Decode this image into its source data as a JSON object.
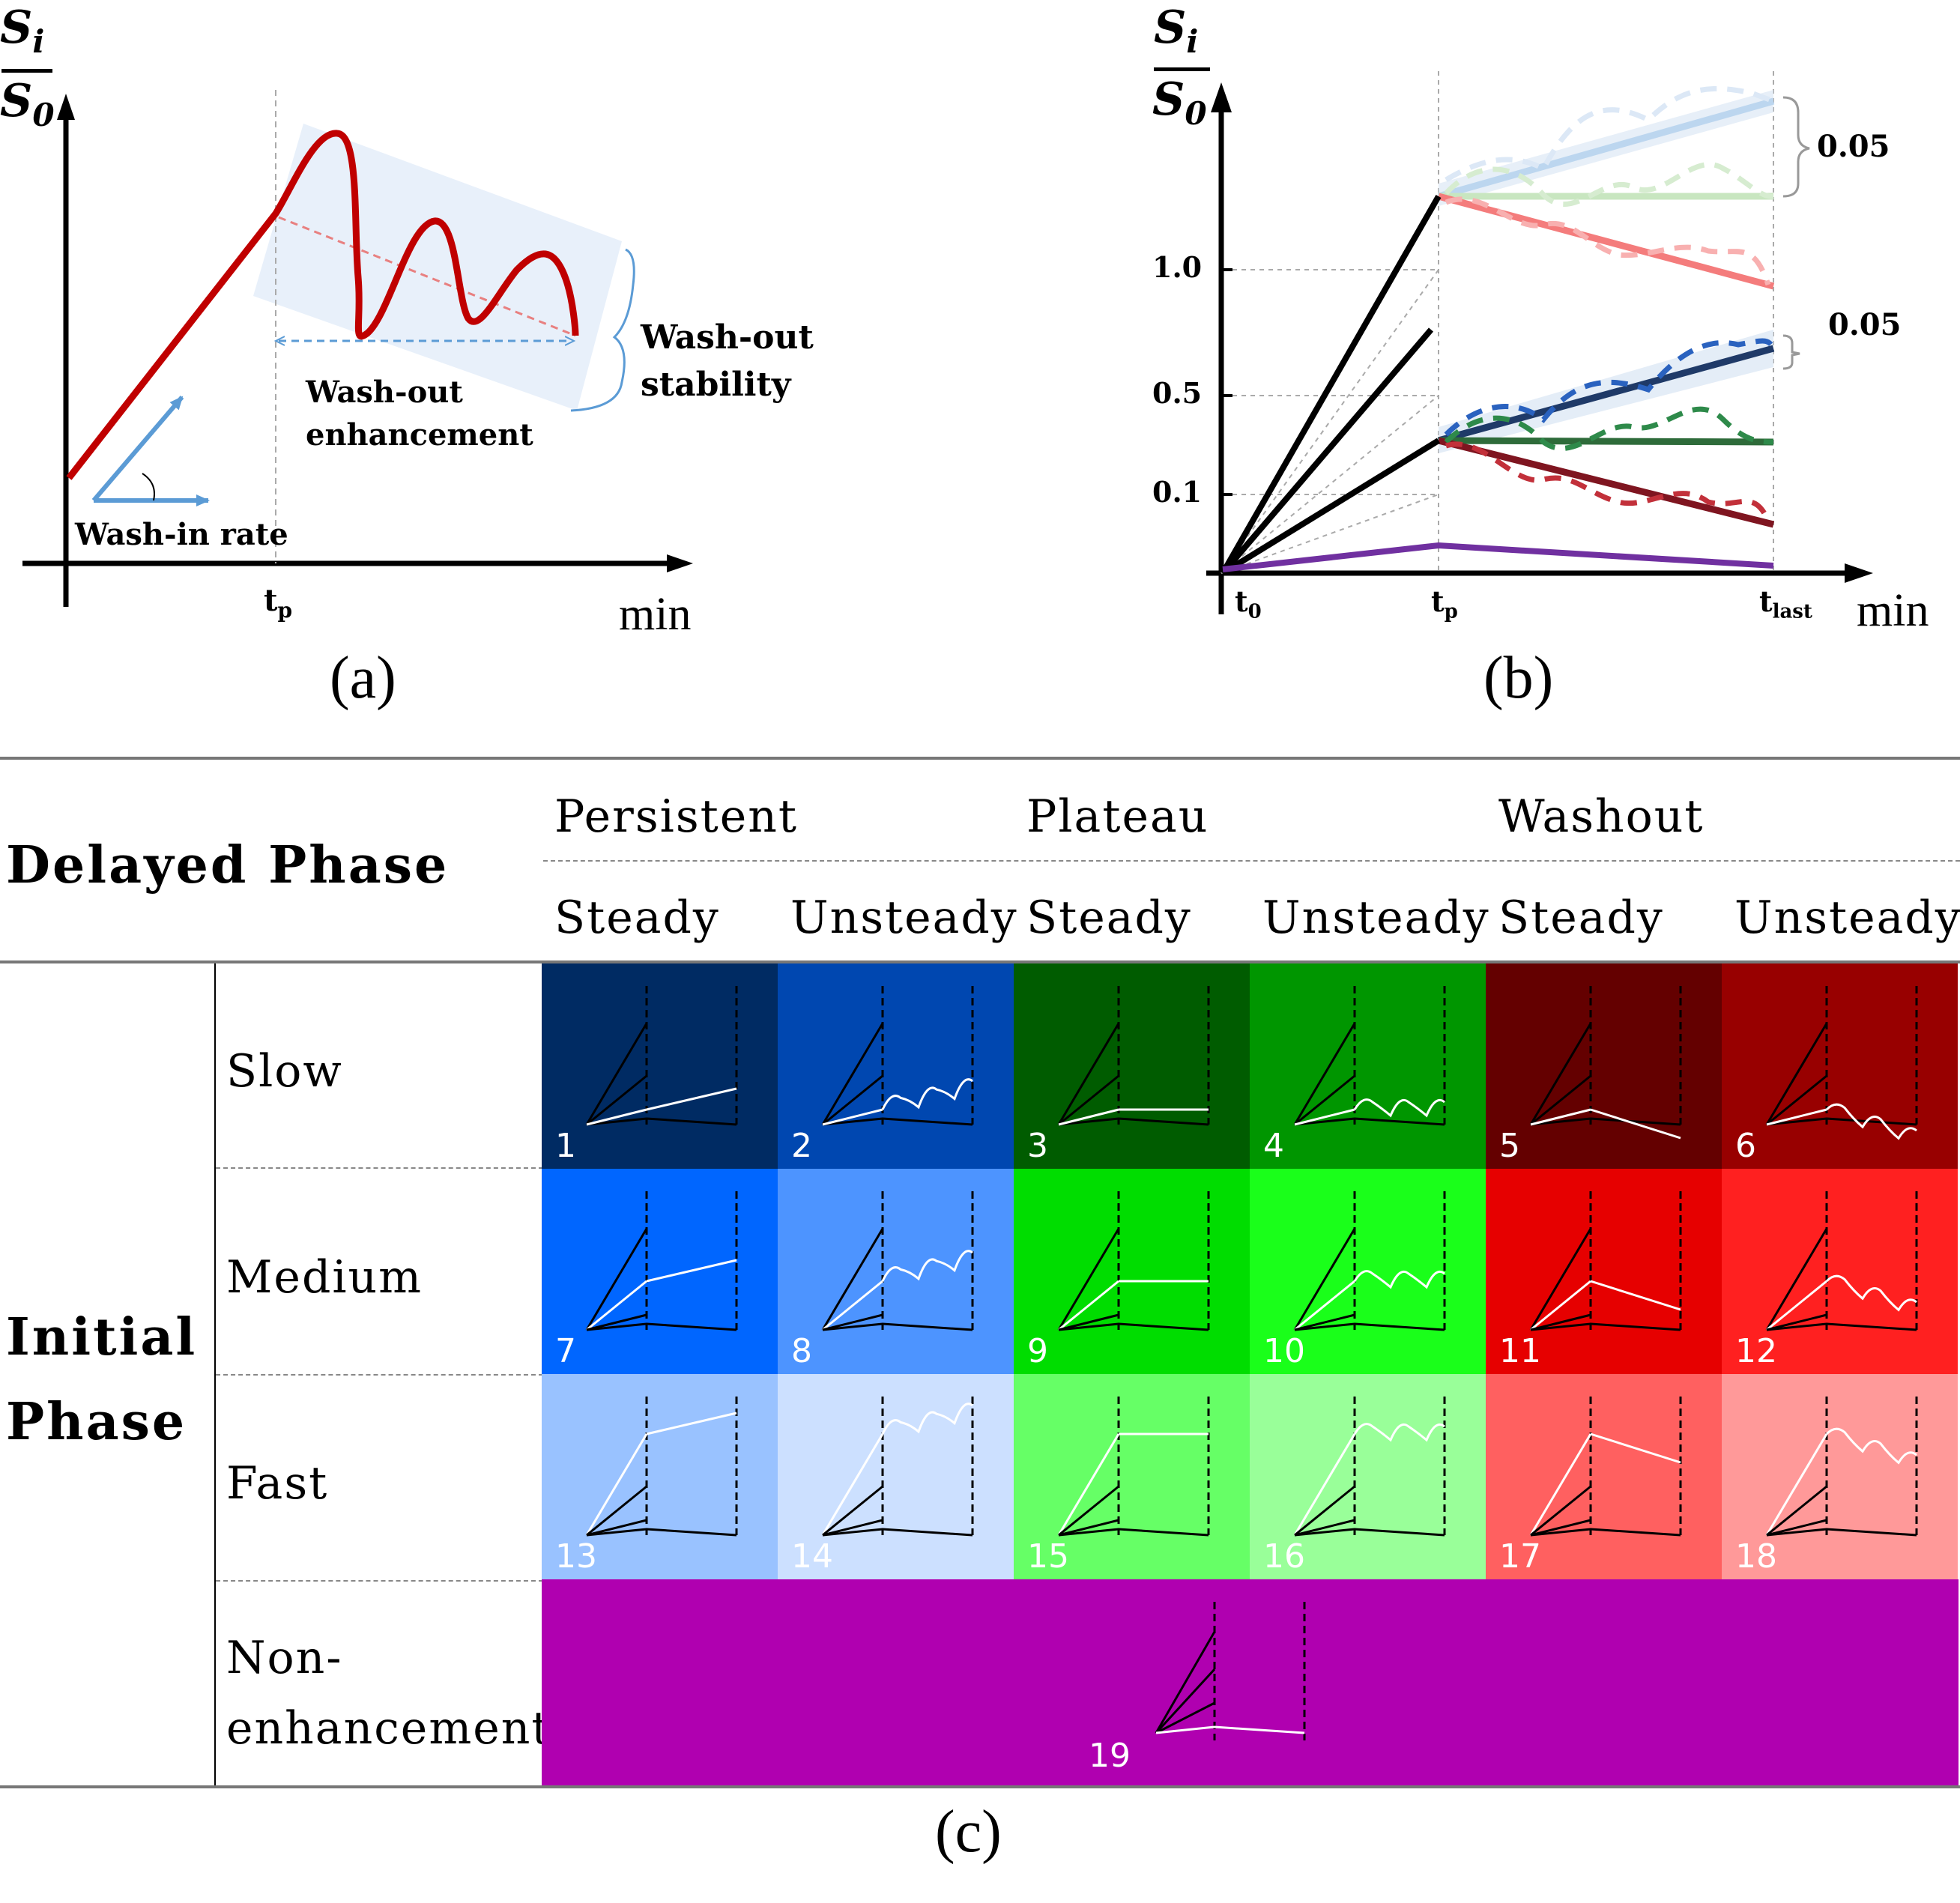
{
  "panel_a": {
    "y_label_num": "S",
    "y_label_num_sub": "i",
    "y_label_den": "S",
    "y_label_den_sub": "0",
    "x_unit": "min",
    "tick_tp": "t",
    "tick_tp_sub": "p",
    "wash_in_label": "Wash-in rate",
    "wash_out_enh_line1": "Wash-out",
    "wash_out_enh_line2": "enhancement",
    "wash_out_stab_line1": "Wash-out",
    "wash_out_stab_line2": "stability",
    "caption": "(a)",
    "colors": {
      "curve": "#c00000",
      "arrow": "#5b9bd5",
      "band": "#e8f0fa"
    }
  },
  "panel_b": {
    "y_label_num": "S",
    "y_label_num_sub": "i",
    "y_label_den": "S",
    "y_label_den_sub": "0",
    "x_unit": "min",
    "y_ticks": [
      "1.0",
      "0.5",
      "0.1"
    ],
    "x_tick_t0": "t",
    "x_tick_t0_sub": "0",
    "x_tick_tp": "t",
    "x_tick_tp_sub": "p",
    "x_tick_tlast": "t",
    "x_tick_tlast_sub": "last",
    "bracket_top": "0.05",
    "bracket_mid": "0.05",
    "caption": "(b)"
  },
  "panel_c": {
    "delayed_phase": "Delayed Phase",
    "initial_phase_line1": "Initial",
    "initial_phase_line2": "Phase",
    "groups": [
      "Persistent",
      "Plateau",
      "Washout"
    ],
    "subgroups": [
      "Steady",
      "Unsteady",
      "Steady",
      "Unsteady",
      "Steady",
      "Unsteady"
    ],
    "rows": [
      "Slow",
      "Medium",
      "Fast"
    ],
    "non_enh_line1": "Non-",
    "non_enh_line2": "enhancement",
    "cells": [
      {
        "n": "1",
        "color": "#002b63"
      },
      {
        "n": "2",
        "color": "#0047b0"
      },
      {
        "n": "3",
        "color": "#005c00"
      },
      {
        "n": "4",
        "color": "#009600"
      },
      {
        "n": "5",
        "color": "#640000"
      },
      {
        "n": "6",
        "color": "#980000"
      },
      {
        "n": "7",
        "color": "#0066ff"
      },
      {
        "n": "8",
        "color": "#4d94ff"
      },
      {
        "n": "9",
        "color": "#00dd00"
      },
      {
        "n": "10",
        "color": "#1aff1a"
      },
      {
        "n": "11",
        "color": "#e60000"
      },
      {
        "n": "12",
        "color": "#ff2020"
      },
      {
        "n": "13",
        "color": "#99c2ff"
      },
      {
        "n": "14",
        "color": "#cce0ff"
      },
      {
        "n": "15",
        "color": "#66ff66"
      },
      {
        "n": "16",
        "color": "#99ff99"
      },
      {
        "n": "17",
        "color": "#ff6060"
      },
      {
        "n": "18",
        "color": "#ff9999"
      }
    ],
    "cell19": {
      "n": "19",
      "color": "#b000b0"
    },
    "caption": "(c)"
  }
}
